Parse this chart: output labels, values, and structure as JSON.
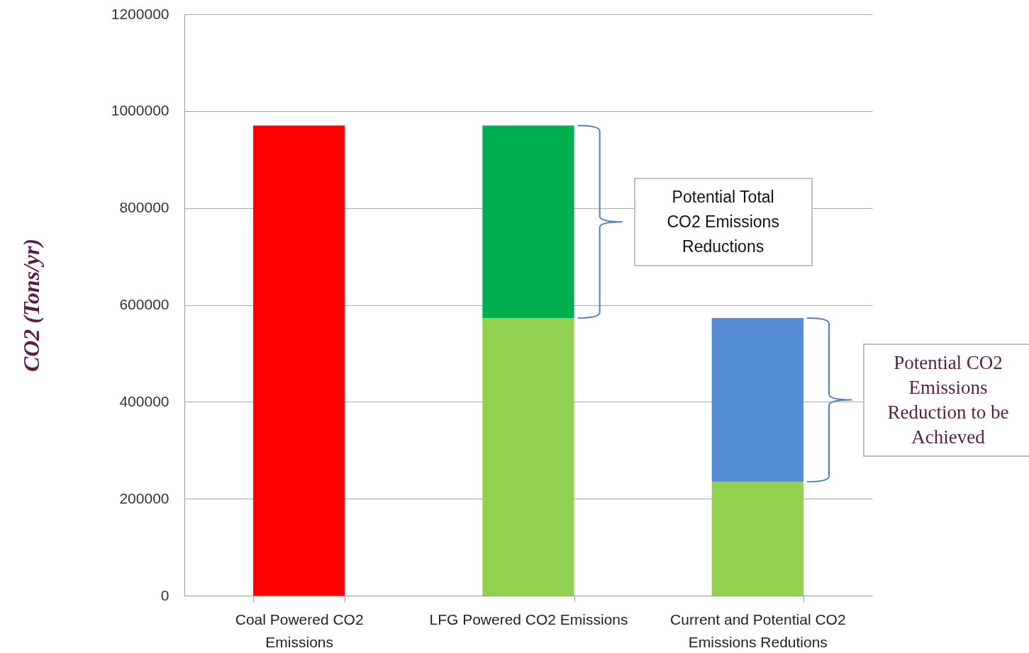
{
  "chart_data": {
    "type": "bar",
    "stacked": true,
    "ylabel": "CO2 (Tons/yr)",
    "categories": [
      "Coal Powered CO2 Emissions",
      "LFG Powered CO2 Emissions",
      "Current and Potential CO2 Emissions Redutions"
    ],
    "series": [
      {
        "colors": [
          "#ff0000",
          "#92d050",
          "#92d050"
        ],
        "values": [
          970000,
          573000,
          235000
        ]
      },
      {
        "colors": [
          "#00b050",
          "#00b050",
          "#558ed5"
        ],
        "values": [
          null,
          397000,
          338000
        ]
      }
    ],
    "ylim": [
      0,
      1200000
    ],
    "yticks": [
      0,
      200000,
      400000,
      600000,
      800000,
      1000000,
      1200000
    ],
    "grid": "y",
    "legend": false,
    "annotations": [
      "Potential Total CO2 Emissions Reductions",
      "Potential CO2 Emissions Reduction to be Achieved"
    ]
  }
}
